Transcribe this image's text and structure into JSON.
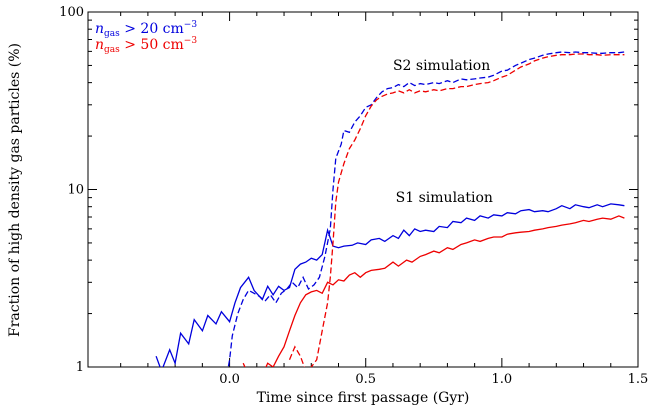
{
  "chart_data": {
    "type": "line",
    "xlabel": "Time since first passage (Gyr)",
    "ylabel": "Fraction of high density gas particles (%)",
    "xlim": [
      -0.52,
      1.5
    ],
    "ylim": [
      1,
      100
    ],
    "yscale": "log",
    "grid": false,
    "legend_position": "top-left",
    "x_ticks": [
      {
        "value": 0.0,
        "label": "0.0"
      },
      {
        "value": 0.5,
        "label": "0.5"
      },
      {
        "value": 1.0,
        "label": "1.0"
      },
      {
        "value": 1.5,
        "label": "1.5"
      }
    ],
    "y_ticks": [
      {
        "value": 1,
        "label": "1"
      },
      {
        "value": 10,
        "label": "10"
      },
      {
        "value": 100,
        "label": "100"
      }
    ],
    "legend": [
      {
        "label": "n_gas > 20 cm^-3",
        "label_html": "<tspan font-style='italic'>n</tspan><tspan font-size='9px' dy='3'>gas</tspan><tspan dy='-3'> &gt; 20 cm</tspan><tspan font-size='9px' dy='-6'>−3</tspan>",
        "color": "#0000dd"
      },
      {
        "label": "n_gas > 50 cm^-3",
        "label_html": "<tspan font-style='italic'>n</tspan><tspan font-size='9px' dy='3'>gas</tspan><tspan dy='-3'> &gt; 50 cm</tspan><tspan font-size='9px' dy='-6'>−3</tspan>",
        "color": "#ee0000"
      }
    ],
    "annotations": [
      {
        "text": "S2 simulation",
        "x": 0.6,
        "y": 47
      },
      {
        "text": "S1 simulation",
        "x": 0.61,
        "y": 8.5
      }
    ],
    "series": [
      {
        "name": "S1, n_gas > 20 cm^-3",
        "color": "#0000dd",
        "dash": "solid",
        "points": [
          [
            -0.27,
            1.15
          ],
          [
            -0.25,
            0.95
          ],
          [
            -0.22,
            1.25
          ],
          [
            -0.2,
            1.05
          ],
          [
            -0.18,
            1.55
          ],
          [
            -0.15,
            1.35
          ],
          [
            -0.13,
            1.85
          ],
          [
            -0.1,
            1.6
          ],
          [
            -0.08,
            1.95
          ],
          [
            -0.05,
            1.75
          ],
          [
            -0.03,
            2.05
          ],
          [
            0.0,
            1.8
          ],
          [
            0.02,
            2.3
          ],
          [
            0.04,
            2.8
          ],
          [
            0.07,
            3.2
          ],
          [
            0.09,
            2.7
          ],
          [
            0.12,
            2.4
          ],
          [
            0.14,
            2.85
          ],
          [
            0.16,
            2.55
          ],
          [
            0.18,
            2.85
          ],
          [
            0.2,
            2.7
          ],
          [
            0.22,
            2.8
          ],
          [
            0.24,
            3.55
          ],
          [
            0.26,
            3.8
          ],
          [
            0.28,
            3.9
          ],
          [
            0.3,
            4.1
          ],
          [
            0.32,
            4.0
          ],
          [
            0.34,
            4.3
          ],
          [
            0.36,
            5.9
          ],
          [
            0.38,
            4.8
          ],
          [
            0.4,
            4.7
          ],
          [
            0.42,
            4.8
          ],
          [
            0.45,
            4.85
          ],
          [
            0.47,
            5.0
          ],
          [
            0.5,
            4.9
          ],
          [
            0.52,
            5.2
          ],
          [
            0.55,
            5.3
          ],
          [
            0.57,
            5.1
          ],
          [
            0.6,
            5.5
          ],
          [
            0.62,
            5.3
          ],
          [
            0.64,
            5.9
          ],
          [
            0.66,
            5.5
          ],
          [
            0.68,
            6.0
          ],
          [
            0.7,
            5.8
          ],
          [
            0.72,
            5.9
          ],
          [
            0.75,
            5.8
          ],
          [
            0.77,
            6.2
          ],
          [
            0.8,
            6.1
          ],
          [
            0.82,
            6.6
          ],
          [
            0.85,
            6.5
          ],
          [
            0.87,
            6.9
          ],
          [
            0.9,
            6.7
          ],
          [
            0.92,
            7.1
          ],
          [
            0.95,
            6.9
          ],
          [
            0.97,
            7.2
          ],
          [
            1.0,
            7.1
          ],
          [
            1.02,
            7.4
          ],
          [
            1.05,
            7.3
          ],
          [
            1.07,
            7.6
          ],
          [
            1.1,
            7.7
          ],
          [
            1.12,
            7.5
          ],
          [
            1.15,
            7.6
          ],
          [
            1.17,
            7.5
          ],
          [
            1.2,
            7.8
          ],
          [
            1.22,
            8.1
          ],
          [
            1.25,
            7.8
          ],
          [
            1.27,
            8.2
          ],
          [
            1.3,
            8.0
          ],
          [
            1.32,
            7.9
          ],
          [
            1.35,
            8.2
          ],
          [
            1.37,
            8.0
          ],
          [
            1.4,
            8.3
          ],
          [
            1.43,
            8.2
          ],
          [
            1.45,
            8.1
          ]
        ]
      },
      {
        "name": "S1, n_gas > 50 cm^-3",
        "color": "#ee0000",
        "dash": "solid",
        "points": [
          [
            0.05,
            1.05
          ],
          [
            0.07,
            0.9
          ],
          [
            0.1,
            0.95
          ],
          [
            0.12,
            0.9
          ],
          [
            0.14,
            1.05
          ],
          [
            0.16,
            1.0
          ],
          [
            0.18,
            1.15
          ],
          [
            0.2,
            1.3
          ],
          [
            0.22,
            1.6
          ],
          [
            0.24,
            1.95
          ],
          [
            0.26,
            2.3
          ],
          [
            0.28,
            2.55
          ],
          [
            0.3,
            2.65
          ],
          [
            0.32,
            2.7
          ],
          [
            0.34,
            2.6
          ],
          [
            0.36,
            3.0
          ],
          [
            0.38,
            2.9
          ],
          [
            0.4,
            3.1
          ],
          [
            0.42,
            3.05
          ],
          [
            0.44,
            3.3
          ],
          [
            0.46,
            3.4
          ],
          [
            0.48,
            3.2
          ],
          [
            0.5,
            3.4
          ],
          [
            0.52,
            3.5
          ],
          [
            0.55,
            3.55
          ],
          [
            0.57,
            3.6
          ],
          [
            0.6,
            3.9
          ],
          [
            0.62,
            3.7
          ],
          [
            0.65,
            4.0
          ],
          [
            0.67,
            3.9
          ],
          [
            0.7,
            4.2
          ],
          [
            0.72,
            4.3
          ],
          [
            0.75,
            4.5
          ],
          [
            0.77,
            4.4
          ],
          [
            0.8,
            4.7
          ],
          [
            0.82,
            4.6
          ],
          [
            0.85,
            4.9
          ],
          [
            0.87,
            5.0
          ],
          [
            0.9,
            5.2
          ],
          [
            0.92,
            5.1
          ],
          [
            0.95,
            5.3
          ],
          [
            0.97,
            5.4
          ],
          [
            1.0,
            5.4
          ],
          [
            1.02,
            5.6
          ],
          [
            1.05,
            5.7
          ],
          [
            1.07,
            5.75
          ],
          [
            1.1,
            5.8
          ],
          [
            1.12,
            5.9
          ],
          [
            1.15,
            6.0
          ],
          [
            1.17,
            6.1
          ],
          [
            1.2,
            6.2
          ],
          [
            1.22,
            6.3
          ],
          [
            1.25,
            6.4
          ],
          [
            1.27,
            6.5
          ],
          [
            1.3,
            6.7
          ],
          [
            1.32,
            6.6
          ],
          [
            1.35,
            6.8
          ],
          [
            1.37,
            6.9
          ],
          [
            1.4,
            6.8
          ],
          [
            1.43,
            7.1
          ],
          [
            1.45,
            6.9
          ]
        ]
      },
      {
        "name": "S2, n_gas > 20 cm^-3",
        "color": "#0000dd",
        "dash": "dashed",
        "points": [
          [
            -0.01,
            0.9
          ],
          [
            0.0,
            1.1
          ],
          [
            0.01,
            1.5
          ],
          [
            0.03,
            2.0
          ],
          [
            0.05,
            2.4
          ],
          [
            0.07,
            2.7
          ],
          [
            0.09,
            2.6
          ],
          [
            0.11,
            2.5
          ],
          [
            0.13,
            2.35
          ],
          [
            0.15,
            2.55
          ],
          [
            0.17,
            2.3
          ],
          [
            0.19,
            2.6
          ],
          [
            0.21,
            2.75
          ],
          [
            0.23,
            3.0
          ],
          [
            0.25,
            2.8
          ],
          [
            0.27,
            3.2
          ],
          [
            0.29,
            2.75
          ],
          [
            0.31,
            2.9
          ],
          [
            0.33,
            3.2
          ],
          [
            0.35,
            4.2
          ],
          [
            0.37,
            6.0
          ],
          [
            0.38,
            10.0
          ],
          [
            0.39,
            15.0
          ],
          [
            0.41,
            18.0
          ],
          [
            0.42,
            21.5
          ],
          [
            0.44,
            21.0
          ],
          [
            0.46,
            24.0
          ],
          [
            0.48,
            26.0
          ],
          [
            0.5,
            29.0
          ],
          [
            0.52,
            30.0
          ],
          [
            0.54,
            33.0
          ],
          [
            0.56,
            35.5
          ],
          [
            0.58,
            37.0
          ],
          [
            0.6,
            37.5
          ],
          [
            0.62,
            39.0
          ],
          [
            0.64,
            38.0
          ],
          [
            0.66,
            40.0
          ],
          [
            0.68,
            38.5
          ],
          [
            0.7,
            39.5
          ],
          [
            0.72,
            39.0
          ],
          [
            0.75,
            40.0
          ],
          [
            0.77,
            39.5
          ],
          [
            0.8,
            41.0
          ],
          [
            0.82,
            40.0
          ],
          [
            0.85,
            42.0
          ],
          [
            0.87,
            41.5
          ],
          [
            0.9,
            42.0
          ],
          [
            0.92,
            42.5
          ],
          [
            0.95,
            43.0
          ],
          [
            0.97,
            44.0
          ],
          [
            1.0,
            46.5
          ],
          [
            1.02,
            47.0
          ],
          [
            1.05,
            50.0
          ],
          [
            1.07,
            51.5
          ],
          [
            1.1,
            54.0
          ],
          [
            1.12,
            55.0
          ],
          [
            1.15,
            57.0
          ],
          [
            1.17,
            58.0
          ],
          [
            1.2,
            59.0
          ],
          [
            1.22,
            59.5
          ],
          [
            1.25,
            59.0
          ],
          [
            1.27,
            59.5
          ],
          [
            1.3,
            59.0
          ],
          [
            1.32,
            59.0
          ],
          [
            1.35,
            58.5
          ],
          [
            1.37,
            58.5
          ],
          [
            1.4,
            59.0
          ],
          [
            1.43,
            59.0
          ],
          [
            1.45,
            59.5
          ]
        ]
      },
      {
        "name": "S2, n_gas > 50 cm^-3",
        "color": "#ee0000",
        "dash": "dashed",
        "points": [
          [
            0.22,
            1.1
          ],
          [
            0.24,
            1.3
          ],
          [
            0.26,
            1.15
          ],
          [
            0.28,
            0.95
          ],
          [
            0.3,
            1.0
          ],
          [
            0.32,
            1.1
          ],
          [
            0.34,
            1.6
          ],
          [
            0.36,
            2.3
          ],
          [
            0.37,
            3.2
          ],
          [
            0.38,
            5.0
          ],
          [
            0.39,
            8.5
          ],
          [
            0.4,
            11.0
          ],
          [
            0.42,
            14.0
          ],
          [
            0.44,
            17.0
          ],
          [
            0.46,
            19.0
          ],
          [
            0.48,
            22.0
          ],
          [
            0.5,
            26.0
          ],
          [
            0.52,
            29.5
          ],
          [
            0.54,
            32.0
          ],
          [
            0.56,
            33.5
          ],
          [
            0.58,
            34.5
          ],
          [
            0.6,
            35.0
          ],
          [
            0.62,
            36.0
          ],
          [
            0.64,
            35.0
          ],
          [
            0.66,
            36.5
          ],
          [
            0.68,
            35.0
          ],
          [
            0.7,
            36.0
          ],
          [
            0.72,
            35.5
          ],
          [
            0.75,
            36.5
          ],
          [
            0.77,
            36.0
          ],
          [
            0.8,
            37.0
          ],
          [
            0.82,
            37.0
          ],
          [
            0.85,
            38.0
          ],
          [
            0.87,
            38.0
          ],
          [
            0.9,
            39.0
          ],
          [
            0.92,
            39.5
          ],
          [
            0.95,
            40.0
          ],
          [
            0.97,
            41.0
          ],
          [
            1.0,
            43.0
          ],
          [
            1.02,
            44.0
          ],
          [
            1.05,
            47.0
          ],
          [
            1.07,
            49.0
          ],
          [
            1.1,
            51.0
          ],
          [
            1.12,
            53.0
          ],
          [
            1.15,
            55.0
          ],
          [
            1.17,
            56.0
          ],
          [
            1.2,
            57.0
          ],
          [
            1.22,
            57.5
          ],
          [
            1.25,
            57.5
          ],
          [
            1.27,
            58.0
          ],
          [
            1.3,
            58.0
          ],
          [
            1.32,
            57.5
          ],
          [
            1.35,
            57.5
          ],
          [
            1.37,
            57.0
          ],
          [
            1.4,
            57.5
          ],
          [
            1.43,
            57.5
          ],
          [
            1.45,
            57.5
          ]
        ]
      }
    ]
  }
}
